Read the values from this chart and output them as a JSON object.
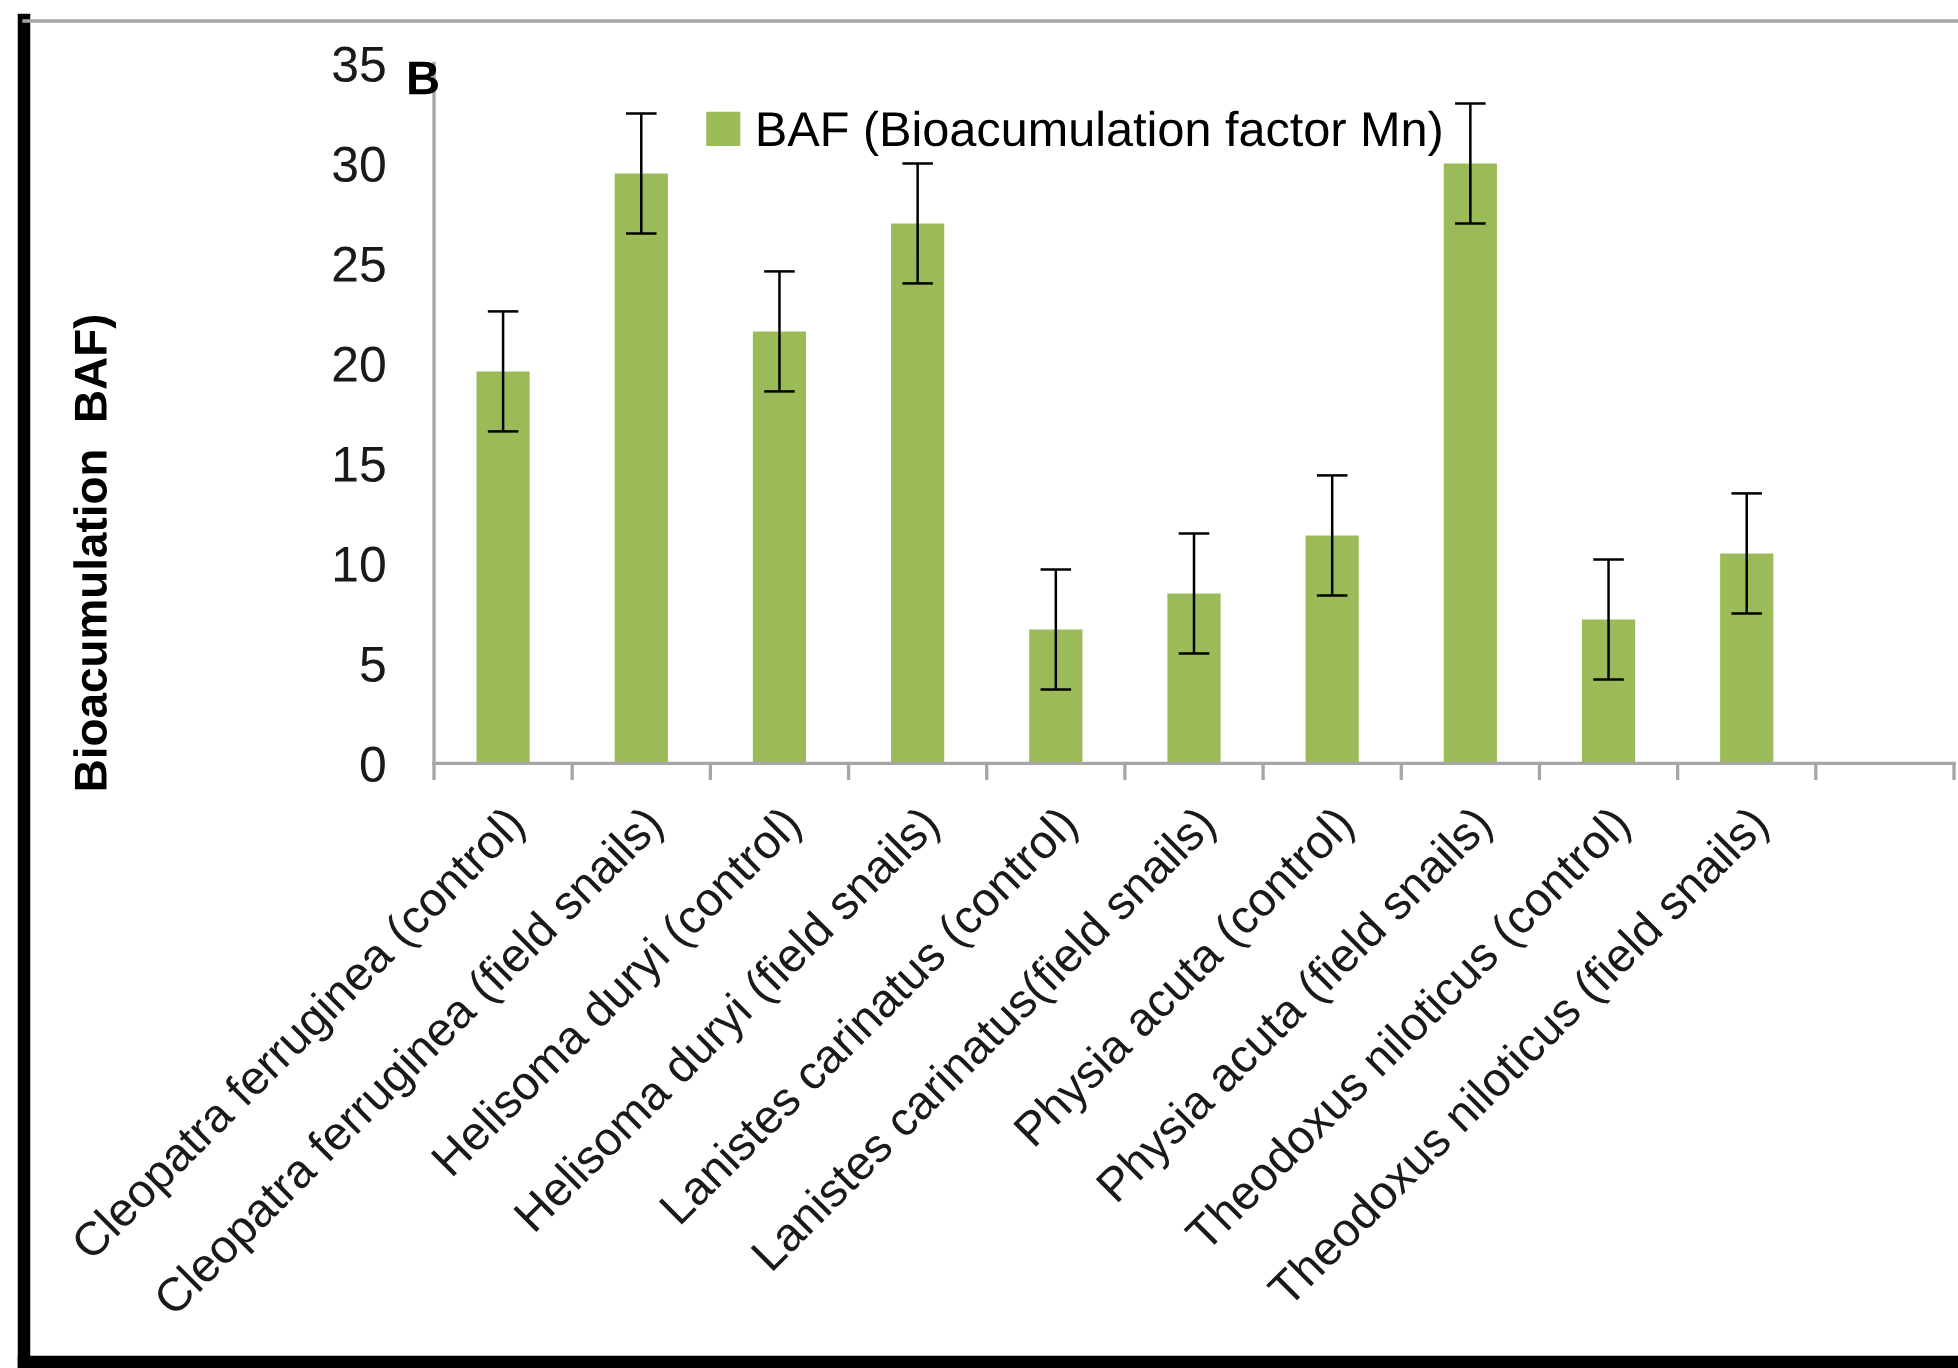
{
  "chart_data": {
    "type": "bar",
    "categories": [
      "Cleopatra ferruginea (control)",
      "Cleopatra ferruginea (field snails)",
      "Helisoma duryi (control)",
      "Helisoma duryi (field snails)",
      "Lanistes carinatus (control)",
      "Lanistes carinatus(field snails)",
      "Physia acuta (control)",
      "Physia acuta (field snails)",
      "Theodoxus niloticus (control)",
      "Theodoxus niloticus (field snails)",
      null
    ],
    "series": [
      {
        "name": "BAF (Bioacumulation factor Mn)",
        "color": "#9bbb59",
        "values": [
          19.6,
          29.5,
          21.6,
          27.0,
          6.7,
          8.5,
          11.4,
          30.0,
          7.2,
          10.5,
          null
        ],
        "errors": [
          3.0,
          3.0,
          3.0,
          3.0,
          3.0,
          3.0,
          3.0,
          3.0,
          3.0,
          3.0,
          null
        ]
      }
    ],
    "ylabel": "Bioacumulation  BAF)",
    "ylim": [
      0,
      35
    ],
    "yticks": [
      0,
      5,
      10,
      15,
      20,
      25,
      30,
      35
    ],
    "legend": "top",
    "annotations": [
      "B"
    ]
  }
}
